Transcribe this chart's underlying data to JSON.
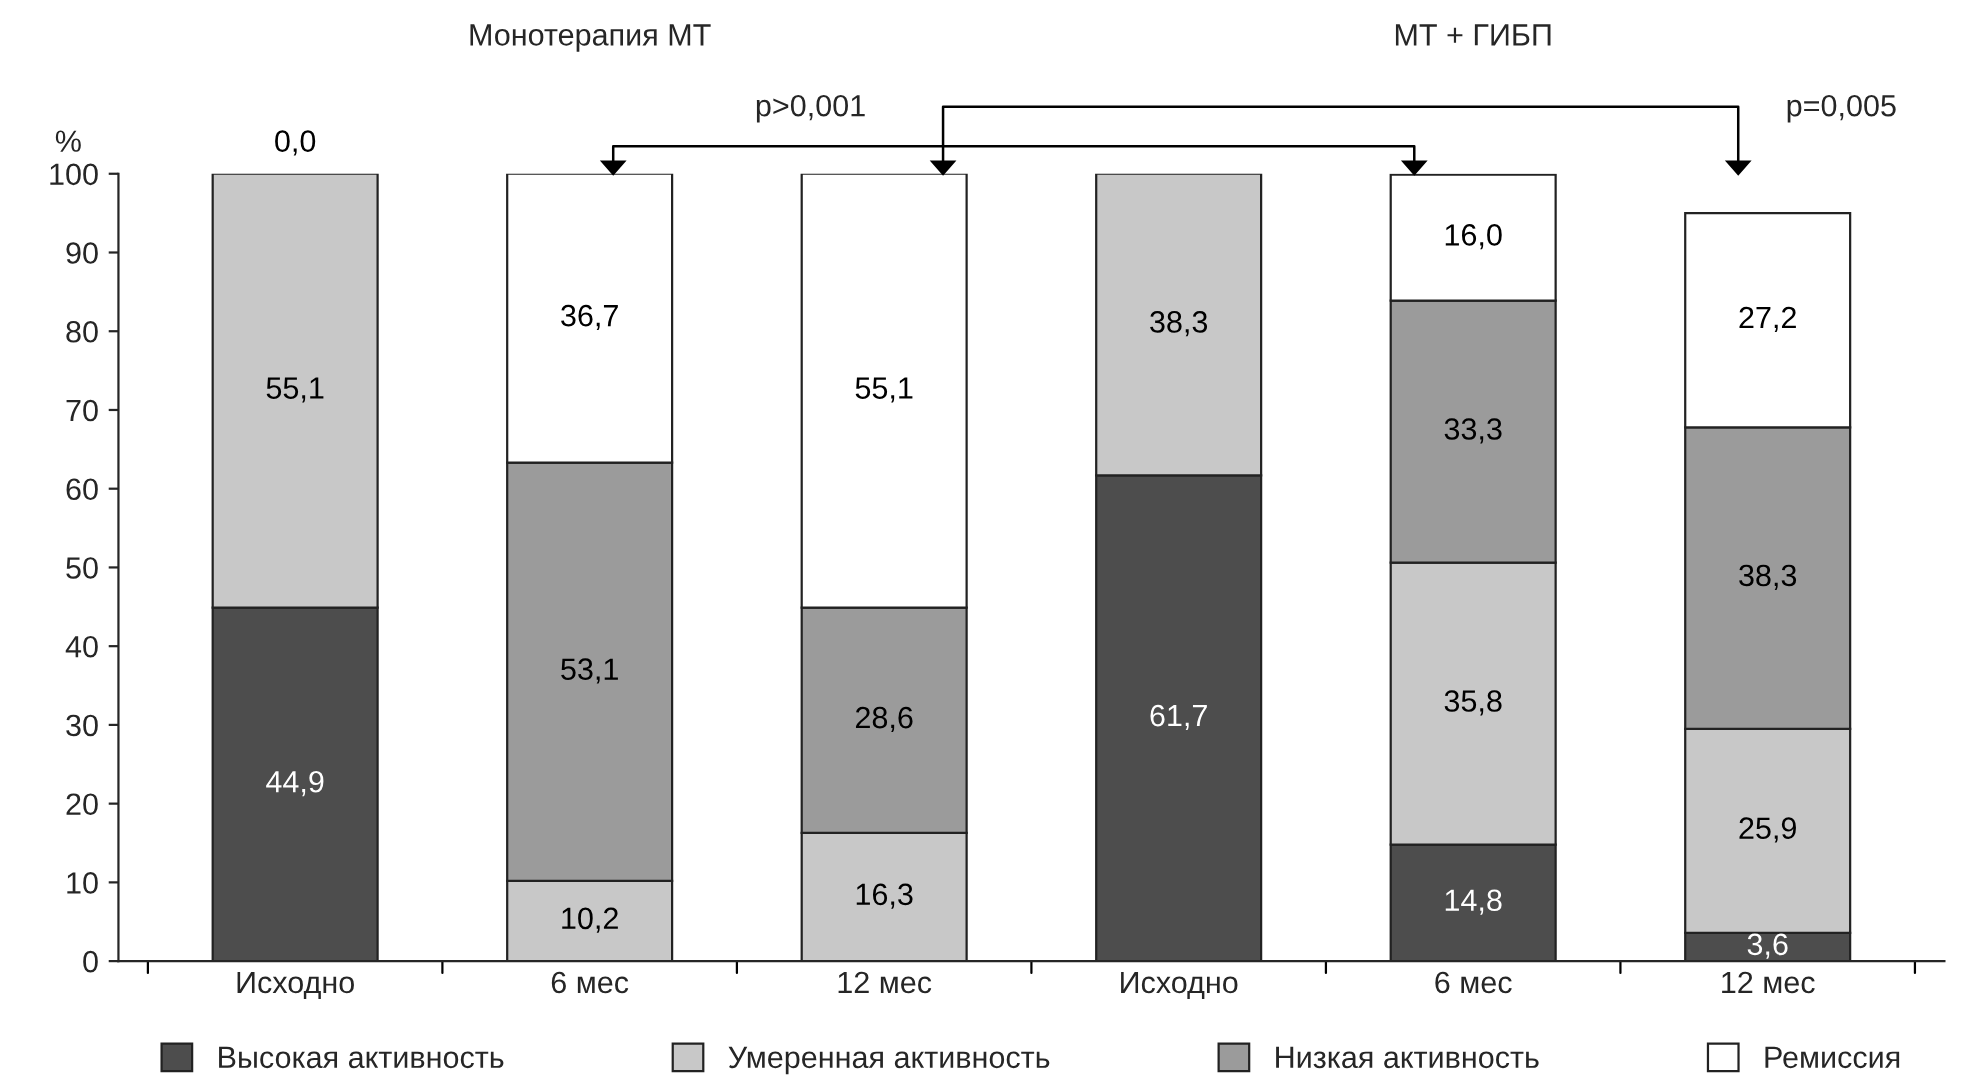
{
  "chart_data": {
    "type": "bar",
    "stacked": true,
    "ylabel": "%",
    "categories": [
      "Исходно",
      "6 мес",
      "12 мес",
      "Исходно",
      "6 мес",
      "12 мес"
    ],
    "series": [
      {
        "name": "Высокая активность",
        "color": "#4d4d4d",
        "values": [
          44.9,
          null,
          null,
          61.7,
          14.8,
          3.6
        ],
        "value_labels": [
          "44,9",
          null,
          null,
          "61,7",
          "14,8",
          "3,6"
        ]
      },
      {
        "name": "Умеренная активность",
        "color": "#c8c8c8",
        "values": [
          55.1,
          10.2,
          16.3,
          38.3,
          35.8,
          25.9
        ],
        "value_labels": [
          "55,1",
          "10,2",
          "16,3",
          "38,3",
          "35,8",
          "25,9"
        ]
      },
      {
        "name": "Низкая активность",
        "color": "#9b9b9b",
        "values": [
          null,
          53.1,
          28.6,
          null,
          33.3,
          38.3
        ],
        "value_labels": [
          null,
          "53,1",
          "28,6",
          null,
          "33,3",
          "38,3"
        ]
      },
      {
        "name": "Ремиссия",
        "color": "#ffffff",
        "values": [
          0,
          36.7,
          55.1,
          null,
          16.0,
          27.2
        ],
        "value_labels": [
          "0,0",
          "36,7",
          "55,1",
          null,
          "16,0",
          "27,2"
        ]
      }
    ],
    "annotations": [
      "Монотерапия МТ",
      "МТ + ГИБП",
      "p>0,001",
      "p=0,005"
    ],
    "ylim": [
      0,
      100
    ],
    "yticks": [
      0,
      10,
      20,
      30,
      40,
      50,
      60,
      70,
      80,
      90,
      100
    ],
    "grid": false,
    "legend": "bottom"
  }
}
